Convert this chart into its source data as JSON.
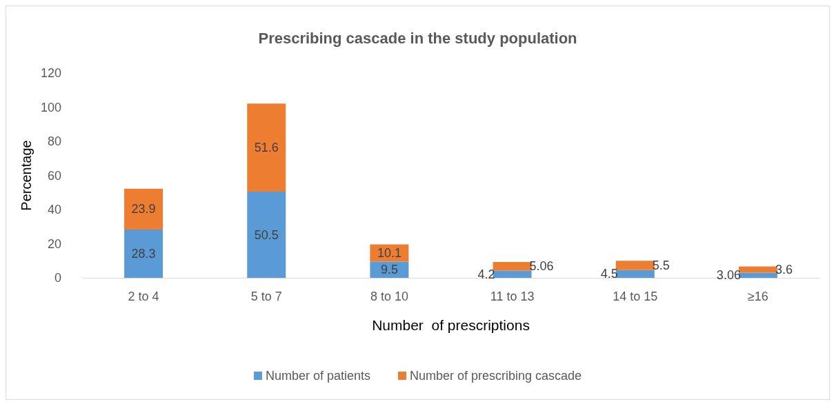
{
  "chart_data": {
    "type": "bar",
    "title": "Prescribing cascade in the study population",
    "xlabel": "Number  of prescriptions",
    "ylabel": "Percentage",
    "categories": [
      "2 to 4",
      "5 to 7",
      "8 to 10",
      "11 to 13",
      "14 to 15",
      "≥16"
    ],
    "series": [
      {
        "name": "Number of patients",
        "color": "#5b9bd5",
        "values": [
          28.3,
          50.5,
          9.5,
          4.2,
          4.5,
          3.06
        ]
      },
      {
        "name": "Number of prescribing cascade",
        "color": "#ed7d31",
        "values": [
          23.9,
          51.6,
          10.1,
          5.06,
          5.5,
          3.6
        ]
      }
    ],
    "stacked": true,
    "data_labels": true,
    "ylim": [
      0,
      120
    ],
    "yticks": [
      0,
      20,
      40,
      60,
      80,
      100,
      120
    ],
    "grid": false,
    "legend": "bottom"
  }
}
